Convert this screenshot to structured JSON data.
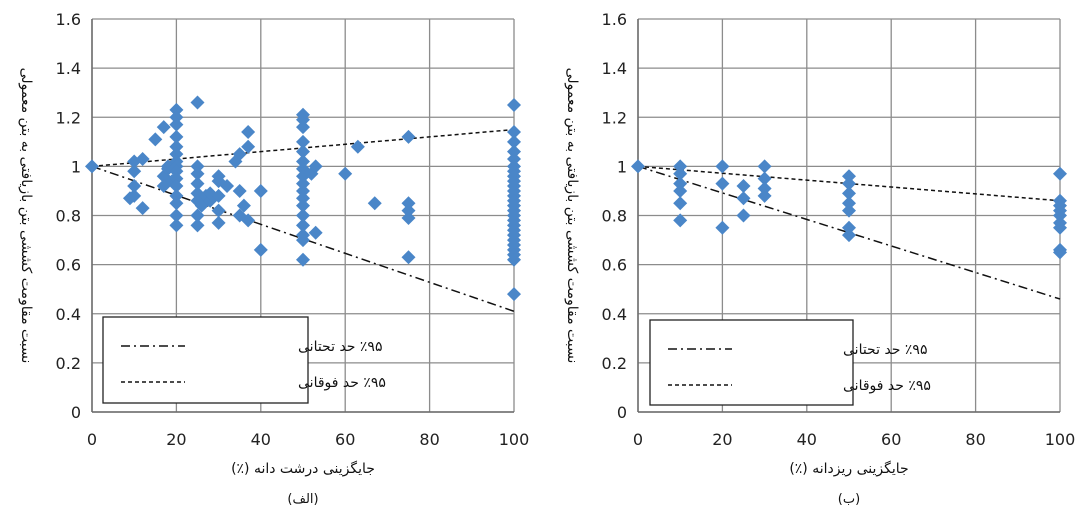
{
  "chart_data": [
    {
      "type": "scatter",
      "panel_label": "(الف)",
      "xlabel": "جایگزینی درشت دانه (٪)",
      "ylabel": "نسبت مقاومت کششی بتن بازیافتی به بتن معمولی",
      "xlim": [
        0,
        100
      ],
      "ylim": [
        0,
        1.6
      ],
      "xticks": [
        "0",
        "20",
        "40",
        "60",
        "80",
        "100"
      ],
      "yticks": [
        "0",
        "0.2",
        "0.4",
        "0.6",
        "0.8",
        "1",
        "1.2",
        "1.4",
        "1.6"
      ],
      "grid": true,
      "legend_placement": "bottom-left",
      "marker_color": "#4a86c8",
      "series": [
        {
          "marker": "diamond",
          "points": [
            [
              0,
              1.0
            ],
            [
              9,
              0.87
            ],
            [
              10,
              0.88
            ],
            [
              10,
              0.98
            ],
            [
              10,
              1.02
            ],
            [
              10,
              0.92
            ],
            [
              12,
              0.83
            ],
            [
              12,
              1.03
            ],
            [
              15,
              1.11
            ],
            [
              17,
              1.16
            ],
            [
              17,
              0.96
            ],
            [
              17,
              0.92
            ],
            [
              18,
              0.99
            ],
            [
              18,
              1.0
            ],
            [
              19,
              0.94
            ],
            [
              20,
              1.23
            ],
            [
              20,
              1.2
            ],
            [
              20,
              1.17
            ],
            [
              20,
              1.12
            ],
            [
              20,
              1.08
            ],
            [
              20,
              1.05
            ],
            [
              20,
              1.02
            ],
            [
              20,
              1.0
            ],
            [
              20,
              0.98
            ],
            [
              20,
              0.95
            ],
            [
              20,
              0.92
            ],
            [
              20,
              0.88
            ],
            [
              20,
              0.85
            ],
            [
              20,
              0.8
            ],
            [
              20,
              0.76
            ],
            [
              25,
              1.26
            ],
            [
              25,
              1.0
            ],
            [
              25,
              0.97
            ],
            [
              25,
              0.93
            ],
            [
              25,
              0.89
            ],
            [
              25,
              0.86
            ],
            [
              25,
              0.8
            ],
            [
              25,
              0.76
            ],
            [
              26,
              0.84
            ],
            [
              27,
              0.88
            ],
            [
              28,
              0.86
            ],
            [
              28,
              0.89
            ],
            [
              30,
              0.96
            ],
            [
              30,
              0.94
            ],
            [
              30,
              0.88
            ],
            [
              30,
              0.82
            ],
            [
              30,
              0.77
            ],
            [
              32,
              0.92
            ],
            [
              34,
              1.02
            ],
            [
              35,
              1.05
            ],
            [
              35,
              0.9
            ],
            [
              35,
              0.8
            ],
            [
              36,
              0.84
            ],
            [
              37,
              1.14
            ],
            [
              37,
              1.08
            ],
            [
              37,
              0.78
            ],
            [
              40,
              0.9
            ],
            [
              40,
              0.66
            ],
            [
              50,
              1.21
            ],
            [
              50,
              1.19
            ],
            [
              50,
              1.16
            ],
            [
              50,
              1.1
            ],
            [
              50,
              1.06
            ],
            [
              50,
              1.02
            ],
            [
              50,
              0.99
            ],
            [
              50,
              0.96
            ],
            [
              50,
              0.93
            ],
            [
              50,
              0.9
            ],
            [
              50,
              0.87
            ],
            [
              50,
              0.84
            ],
            [
              50,
              0.8
            ],
            [
              50,
              0.76
            ],
            [
              50,
              0.72
            ],
            [
              50,
              0.7
            ],
            [
              50,
              0.62
            ],
            [
              52,
              0.97
            ],
            [
              53,
              1.0
            ],
            [
              53,
              0.73
            ],
            [
              60,
              0.97
            ],
            [
              63,
              1.08
            ],
            [
              67,
              0.85
            ],
            [
              75,
              1.12
            ],
            [
              75,
              0.85
            ],
            [
              75,
              0.82
            ],
            [
              75,
              0.79
            ],
            [
              75,
              0.63
            ],
            [
              100,
              1.25
            ],
            [
              100,
              1.14
            ],
            [
              100,
              1.1
            ],
            [
              100,
              1.06
            ],
            [
              100,
              1.03
            ],
            [
              100,
              1.0
            ],
            [
              100,
              0.98
            ],
            [
              100,
              0.96
            ],
            [
              100,
              0.94
            ],
            [
              100,
              0.92
            ],
            [
              100,
              0.9
            ],
            [
              100,
              0.88
            ],
            [
              100,
              0.86
            ],
            [
              100,
              0.84
            ],
            [
              100,
              0.82
            ],
            [
              100,
              0.8
            ],
            [
              100,
              0.78
            ],
            [
              100,
              0.76
            ],
            [
              100,
              0.74
            ],
            [
              100,
              0.72
            ],
            [
              100,
              0.7
            ],
            [
              100,
              0.68
            ],
            [
              100,
              0.66
            ],
            [
              100,
              0.64
            ],
            [
              100,
              0.62
            ],
            [
              100,
              0.48
            ]
          ]
        },
        {
          "name": "٪۹۵ حد تحتانی",
          "style": "dash-dot",
          "line": [
            [
              0,
              1.0
            ],
            [
              100,
              0.41
            ]
          ]
        },
        {
          "name": "٪۹۵ حد فوقانی",
          "style": "dashed",
          "line": [
            [
              0,
              1.0
            ],
            [
              100,
              1.15
            ]
          ]
        }
      ]
    },
    {
      "type": "scatter",
      "panel_label": "(ب)",
      "xlabel": "جایگزینی ریزدانه (٪)",
      "ylabel": "نسبت مقاومت کششی بتن بازیافتی به بتن معمولی",
      "xlim": [
        0,
        100
      ],
      "ylim": [
        0,
        1.6
      ],
      "xticks": [
        "0",
        "20",
        "40",
        "60",
        "80",
        "100"
      ],
      "yticks": [
        "0",
        "0.2",
        "0.4",
        "0.6",
        "0.8",
        "1",
        "1.2",
        "1.4",
        "1.6"
      ],
      "grid": true,
      "legend_placement": "bottom-left",
      "marker_color": "#4a86c8",
      "series": [
        {
          "marker": "diamond",
          "points": [
            [
              0,
              1.0
            ],
            [
              10,
              1.0
            ],
            [
              10,
              0.97
            ],
            [
              10,
              0.93
            ],
            [
              10,
              0.9
            ],
            [
              10,
              0.85
            ],
            [
              10,
              0.78
            ],
            [
              20,
              1.0
            ],
            [
              20,
              0.93
            ],
            [
              20,
              0.75
            ],
            [
              25,
              0.92
            ],
            [
              25,
              0.87
            ],
            [
              25,
              0.8
            ],
            [
              30,
              1.0
            ],
            [
              30,
              0.95
            ],
            [
              30,
              0.91
            ],
            [
              30,
              0.88
            ],
            [
              50,
              0.96
            ],
            [
              50,
              0.93
            ],
            [
              50,
              0.89
            ],
            [
              50,
              0.85
            ],
            [
              50,
              0.82
            ],
            [
              50,
              0.75
            ],
            [
              50,
              0.72
            ],
            [
              100,
              0.97
            ],
            [
              100,
              0.86
            ],
            [
              100,
              0.84
            ],
            [
              100,
              0.82
            ],
            [
              100,
              0.8
            ],
            [
              100,
              0.77
            ],
            [
              100,
              0.75
            ],
            [
              100,
              0.66
            ],
            [
              100,
              0.65
            ]
          ]
        },
        {
          "name": "٪۹۵ حد تحتانی",
          "style": "dash-dot",
          "line": [
            [
              0,
              1.0
            ],
            [
              100,
              0.46
            ]
          ]
        },
        {
          "name": "٪۹۵ حد فوقانی",
          "style": "dashed",
          "line": [
            [
              0,
              1.0
            ],
            [
              100,
              0.86
            ]
          ]
        }
      ]
    }
  ]
}
